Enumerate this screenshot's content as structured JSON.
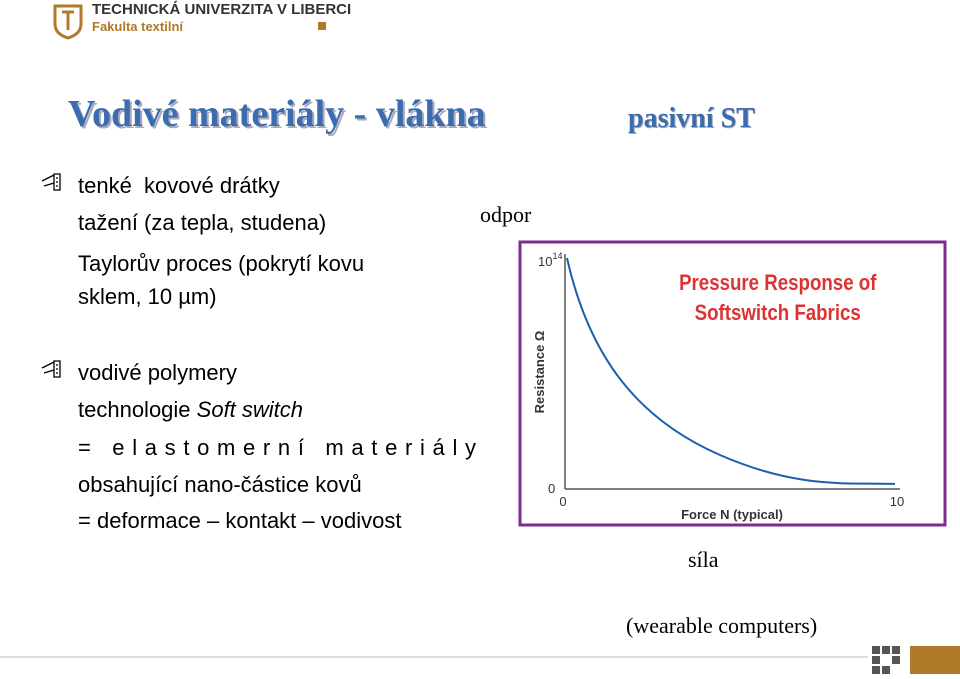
{
  "header": {
    "university": "TECHNICKÁ UNIVERZITA V LIBERCI",
    "faculty": "Fakulta textilní"
  },
  "title": "Vodivé materiály - vlákna",
  "subtitle": "pasivní ST",
  "bullets": [
    {
      "lines": [
        "tenké  kovové drátky",
        "tažení (za tepla, studena)",
        "Taylorův proces (pokrytí kovu",
        "sklem, 10 µm)"
      ]
    },
    {
      "lines": [
        "vodivé polymery",
        "technologie ",
        "= elastomerní materiály",
        "obsahující nano-částice kovů",
        "= deformace – kontakt – vodivost"
      ],
      "emphasis": "Soft switch"
    }
  ],
  "figure": {
    "y_caption": "odpor",
    "x_caption": "síla",
    "note": "(wearable computers)",
    "chart_title": [
      "Pressure Response of",
      "Softswitch Fabrics"
    ],
    "y_axis_label": "Resistance Ω",
    "x_axis_label": "Force N (typical)",
    "y_top": {
      "base": "10",
      "exp": "14"
    },
    "y_bottom": "0",
    "x_left": "0",
    "x_right": "10"
  }
}
